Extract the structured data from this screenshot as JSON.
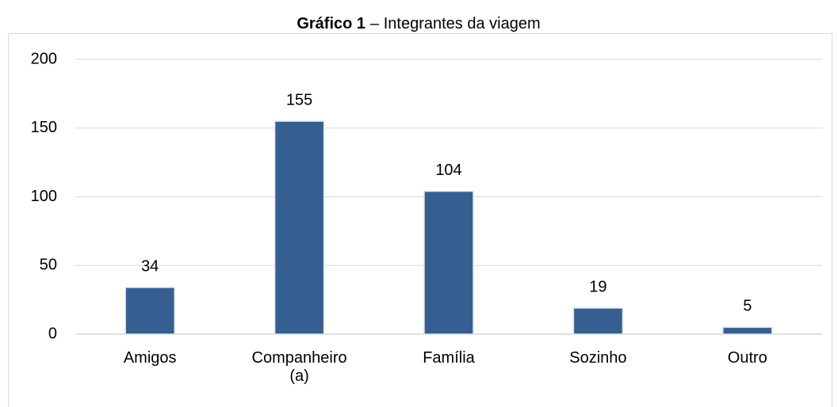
{
  "chart_data": {
    "type": "bar",
    "title": [
      "Gráfico 1",
      "– Integrantes da viagem"
    ],
    "categories": [
      "Amigos",
      "Companheiro (a)",
      "Família",
      "Sozinho",
      "Outro"
    ],
    "values": [
      34,
      155,
      104,
      19,
      5
    ],
    "color": "#365f91",
    "ylim": [
      0,
      200
    ],
    "yticks": [
      0,
      50,
      100,
      150,
      200
    ],
    "grid": true
  }
}
